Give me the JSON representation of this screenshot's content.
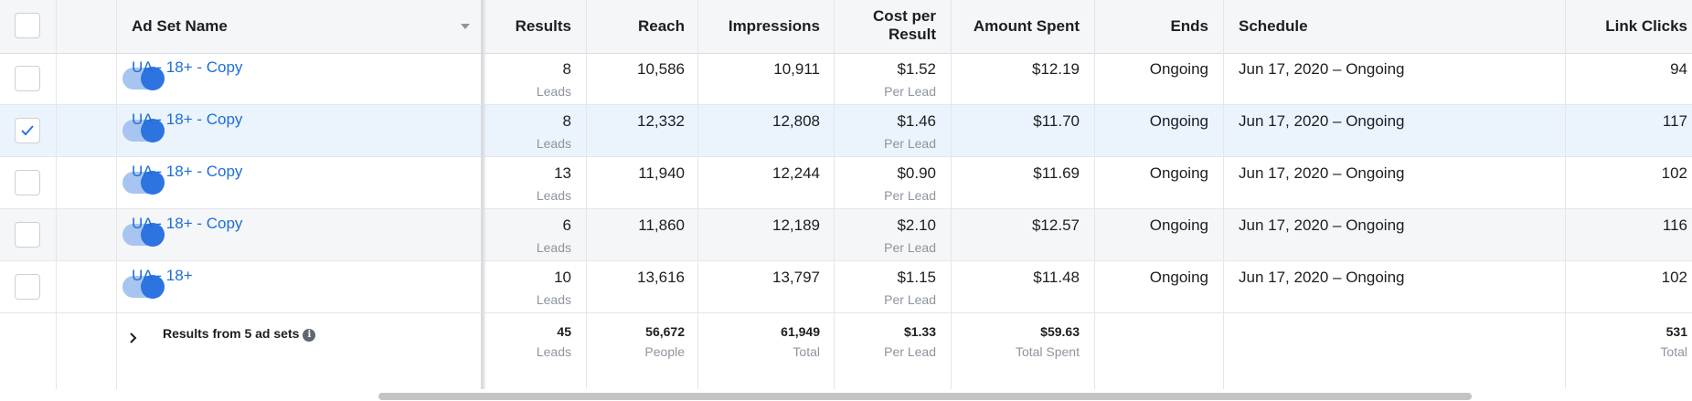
{
  "header": {
    "ad_set_name": "Ad Set Name",
    "results": "Results",
    "reach": "Reach",
    "impressions": "Impressions",
    "cost_per_result_line1": "Cost per",
    "cost_per_result_line2": "Result",
    "amount_spent": "Amount Spent",
    "ends": "Ends",
    "schedule": "Schedule",
    "link_clicks": "Link Clicks"
  },
  "rows": [
    {
      "name": "UA - 18+ - Copy",
      "selected": false,
      "results": "8",
      "results_sub": "Leads",
      "reach": "10,586",
      "impressions": "10,911",
      "cost": "$1.52",
      "cost_sub": "Per Lead",
      "spent": "$12.19",
      "ends": "Ongoing",
      "schedule": "Jun 17, 2020 – Ongoing",
      "clicks": "94"
    },
    {
      "name": "UA - 18+ - Copy",
      "selected": true,
      "results": "8",
      "results_sub": "Leads",
      "reach": "12,332",
      "impressions": "12,808",
      "cost": "$1.46",
      "cost_sub": "Per Lead",
      "spent": "$11.70",
      "ends": "Ongoing",
      "schedule": "Jun 17, 2020 – Ongoing",
      "clicks": "117"
    },
    {
      "name": "UA - 18+ - Copy",
      "selected": false,
      "results": "13",
      "results_sub": "Leads",
      "reach": "11,940",
      "impressions": "12,244",
      "cost": "$0.90",
      "cost_sub": "Per Lead",
      "spent": "$11.69",
      "ends": "Ongoing",
      "schedule": "Jun 17, 2020 – Ongoing",
      "clicks": "102"
    },
    {
      "name": "UA - 18+ - Copy",
      "selected": false,
      "results": "6",
      "results_sub": "Leads",
      "reach": "11,860",
      "impressions": "12,189",
      "cost": "$2.10",
      "cost_sub": "Per Lead",
      "spent": "$12.57",
      "ends": "Ongoing",
      "schedule": "Jun 17, 2020 – Ongoing",
      "clicks": "116"
    },
    {
      "name": "UA - 18+",
      "selected": false,
      "results": "10",
      "results_sub": "Leads",
      "reach": "13,616",
      "impressions": "13,797",
      "cost": "$1.15",
      "cost_sub": "Per Lead",
      "spent": "$11.48",
      "ends": "Ongoing",
      "schedule": "Jun 17, 2020 – Ongoing",
      "clicks": "102"
    }
  ],
  "summary": {
    "label": "Results from 5 ad sets",
    "results": "45",
    "results_sub": "Leads",
    "reach": "56,672",
    "reach_sub": "People",
    "impressions": "61,949",
    "impressions_sub": "Total",
    "cost": "$1.33",
    "cost_sub": "Per Lead",
    "spent": "$59.63",
    "spent_sub": "Total Spent",
    "clicks": "531",
    "clicks_sub": "Total"
  },
  "colors": {
    "link": "#1d6ed6",
    "toggle_on": "#2d74e1",
    "selected_row": "#ebf4fd"
  },
  "icons": {
    "sort": "chevron-down-icon",
    "check": "check-icon",
    "expand": "chevron-right-icon",
    "info": "info-icon"
  }
}
